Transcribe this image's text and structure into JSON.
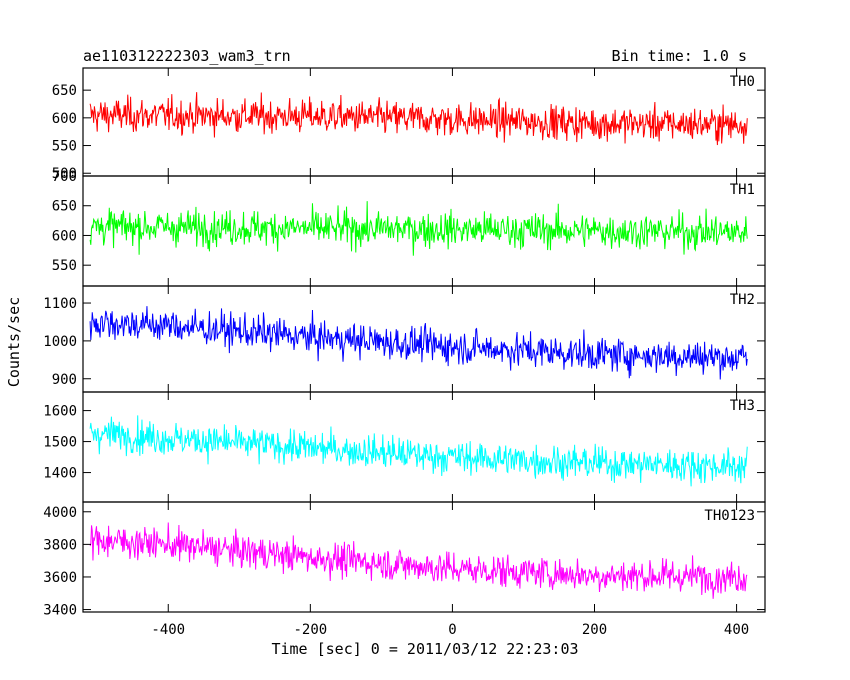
{
  "chart_data": {
    "type": "line",
    "title": "ae110312222303_wam3_trn",
    "bin_time": "Bin time: 1.0 s",
    "xlabel": "Time [sec] 0 = 2011/03/12 22:23:03",
    "ylabel": "Counts/sec",
    "xlim": [
      -520,
      440
    ],
    "x_ticks": [
      -400,
      -200,
      0,
      200,
      400
    ],
    "data_x_range": [
      -510,
      415
    ],
    "panels": [
      {
        "name": "TH0",
        "color": "#ff0000",
        "ylim": [
          495,
          690
        ],
        "y_ticks": [
          500,
          550,
          600,
          650
        ],
        "trend": {
          "x": [
            -510,
            -200,
            0,
            200,
            415
          ],
          "y": [
            605,
            603,
            597,
            590,
            588
          ]
        },
        "noise_amplitude": 26
      },
      {
        "name": "TH1",
        "color": "#00ff00",
        "ylim": [
          515,
          700
        ],
        "y_ticks": [
          550,
          600,
          650,
          700
        ],
        "trend": {
          "x": [
            -510,
            -200,
            0,
            200,
            415
          ],
          "y": [
            615,
            612,
            610,
            608,
            605
          ]
        },
        "noise_amplitude": 25
      },
      {
        "name": "TH2",
        "color": "#0000ff",
        "ylim": [
          865,
          1145
        ],
        "y_ticks": [
          900,
          1000,
          1100
        ],
        "trend": {
          "x": [
            -510,
            -400,
            -200,
            0,
            200,
            415
          ],
          "y": [
            1050,
            1040,
            1010,
            985,
            965,
            955
          ]
        },
        "noise_amplitude": 38
      },
      {
        "name": "TH3",
        "color": "#00ffff",
        "ylim": [
          1305,
          1660
        ],
        "y_ticks": [
          1400,
          1500,
          1600
        ],
        "trend": {
          "x": [
            -510,
            -400,
            -200,
            0,
            200,
            415
          ],
          "y": [
            1530,
            1510,
            1480,
            1450,
            1430,
            1420
          ]
        },
        "noise_amplitude": 45
      },
      {
        "name": "TH0123",
        "color": "#ff00ff",
        "ylim": [
          3385,
          4060
        ],
        "y_ticks": [
          3400,
          3600,
          3800,
          4000
        ],
        "trend": {
          "x": [
            -510,
            -400,
            -200,
            0,
            200,
            415
          ],
          "y": [
            3830,
            3800,
            3720,
            3650,
            3610,
            3600
          ]
        },
        "noise_amplitude": 85
      }
    ]
  }
}
